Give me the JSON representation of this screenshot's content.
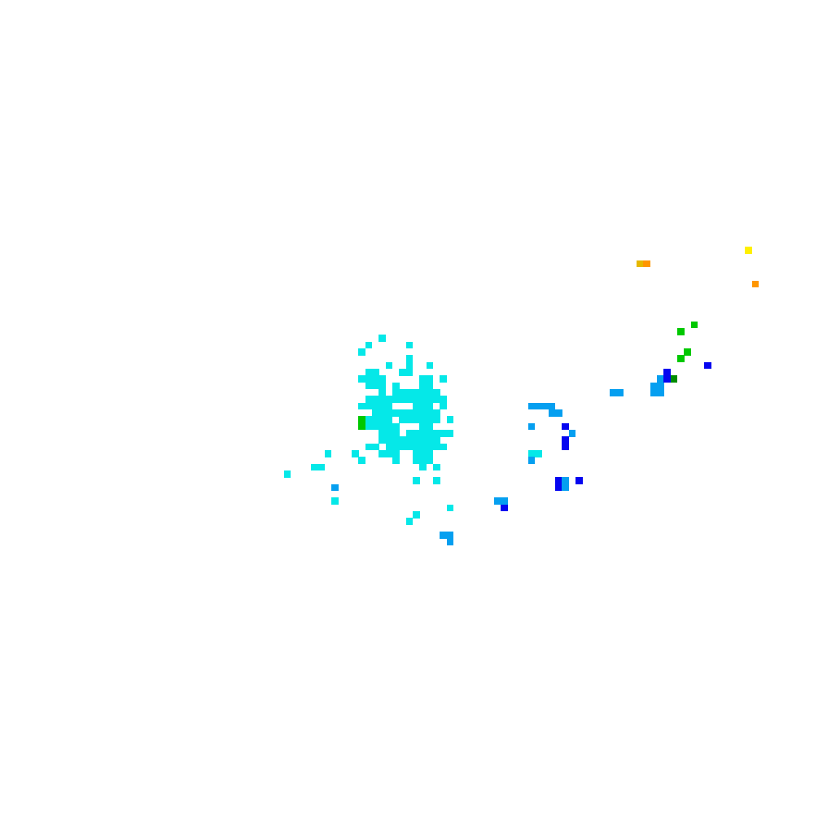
{
  "chart_data": {
    "type": "heatmap",
    "grid_columns": 120,
    "grid_rows": 120,
    "background": "#ffffff",
    "palette": {
      "c": "#05e8e8",
      "l": "#059ff0",
      "b": "#0505f0",
      "g": "#00c800",
      "d": "#008c00",
      "y": "#fff000",
      "o": "#ff9600",
      "k": "#e6b800"
    },
    "runs": [
      [
        49,
        55,
        55,
        "c"
      ],
      [
        50,
        53,
        53,
        "c"
      ],
      [
        50,
        59,
        59,
        "c"
      ],
      [
        51,
        52,
        52,
        "c"
      ],
      [
        52,
        59,
        59,
        "c"
      ],
      [
        53,
        56,
        56,
        "c"
      ],
      [
        53,
        59,
        59,
        "c"
      ],
      [
        53,
        62,
        62,
        "c"
      ],
      [
        54,
        53,
        54,
        "c"
      ],
      [
        54,
        58,
        59,
        "c"
      ],
      [
        55,
        52,
        55,
        "c"
      ],
      [
        55,
        61,
        62,
        "c"
      ],
      [
        55,
        64,
        64,
        "c"
      ],
      [
        56,
        53,
        55,
        "c"
      ],
      [
        56,
        57,
        57,
        "c"
      ],
      [
        56,
        61,
        62,
        "c"
      ],
      [
        57,
        55,
        55,
        "c"
      ],
      [
        57,
        57,
        63,
        "c"
      ],
      [
        58,
        53,
        64,
        "c"
      ],
      [
        59,
        52,
        56,
        "c"
      ],
      [
        59,
        60,
        62,
        "c"
      ],
      [
        59,
        64,
        64,
        "c"
      ],
      [
        60,
        54,
        63,
        "c"
      ],
      [
        61,
        52,
        52,
        "g"
      ],
      [
        61,
        53,
        56,
        "c"
      ],
      [
        61,
        58,
        63,
        "c"
      ],
      [
        61,
        65,
        65,
        "c"
      ],
      [
        62,
        52,
        52,
        "g"
      ],
      [
        62,
        53,
        57,
        "c"
      ],
      [
        62,
        61,
        62,
        "c"
      ],
      [
        63,
        55,
        57,
        "c"
      ],
      [
        63,
        59,
        65,
        "c"
      ],
      [
        64,
        55,
        63,
        "c"
      ],
      [
        65,
        53,
        54,
        "c"
      ],
      [
        65,
        56,
        64,
        "c"
      ],
      [
        66,
        47,
        47,
        "c"
      ],
      [
        66,
        51,
        51,
        "c"
      ],
      [
        66,
        55,
        57,
        "c"
      ],
      [
        66,
        60,
        62,
        "c"
      ],
      [
        67,
        52,
        52,
        "c"
      ],
      [
        67,
        57,
        57,
        "c"
      ],
      [
        67,
        60,
        62,
        "c"
      ],
      [
        68,
        45,
        46,
        "c"
      ],
      [
        68,
        61,
        61,
        "c"
      ],
      [
        68,
        63,
        63,
        "c"
      ],
      [
        69,
        41,
        41,
        "c"
      ],
      [
        70,
        60,
        60,
        "c"
      ],
      [
        70,
        63,
        63,
        "c"
      ],
      [
        71,
        48,
        48,
        "l"
      ],
      [
        73,
        48,
        48,
        "c"
      ],
      [
        74,
        65,
        65,
        "c"
      ],
      [
        75,
        60,
        60,
        "c"
      ],
      [
        76,
        59,
        59,
        "c"
      ],
      [
        36,
        109,
        109,
        "y"
      ],
      [
        38,
        93,
        93,
        "k"
      ],
      [
        38,
        94,
        94,
        "o"
      ],
      [
        41,
        110,
        110,
        "o"
      ],
      [
        47,
        101,
        101,
        "g"
      ],
      [
        48,
        99,
        99,
        "g"
      ],
      [
        51,
        100,
        100,
        "g"
      ],
      [
        52,
        99,
        99,
        "g"
      ],
      [
        53,
        103,
        103,
        "b"
      ],
      [
        54,
        97,
        97,
        "b"
      ],
      [
        55,
        96,
        96,
        "l"
      ],
      [
        55,
        97,
        97,
        "b"
      ],
      [
        55,
        98,
        98,
        "d"
      ],
      [
        56,
        95,
        96,
        "l"
      ],
      [
        57,
        95,
        96,
        "l"
      ],
      [
        57,
        89,
        90,
        "l"
      ],
      [
        59,
        77,
        80,
        "l"
      ],
      [
        60,
        80,
        81,
        "l"
      ],
      [
        62,
        77,
        77,
        "l"
      ],
      [
        62,
        82,
        82,
        "b"
      ],
      [
        63,
        83,
        83,
        "l"
      ],
      [
        64,
        82,
        82,
        "b"
      ],
      [
        65,
        82,
        82,
        "b"
      ],
      [
        66,
        77,
        78,
        "c"
      ],
      [
        67,
        77,
        77,
        "l"
      ],
      [
        70,
        81,
        81,
        "b"
      ],
      [
        70,
        82,
        82,
        "l"
      ],
      [
        70,
        84,
        84,
        "b"
      ],
      [
        71,
        81,
        81,
        "b"
      ],
      [
        71,
        82,
        82,
        "l"
      ],
      [
        73,
        72,
        73,
        "l"
      ],
      [
        74,
        73,
        73,
        "b"
      ],
      [
        78,
        64,
        65,
        "l"
      ],
      [
        79,
        65,
        65,
        "l"
      ]
    ]
  }
}
